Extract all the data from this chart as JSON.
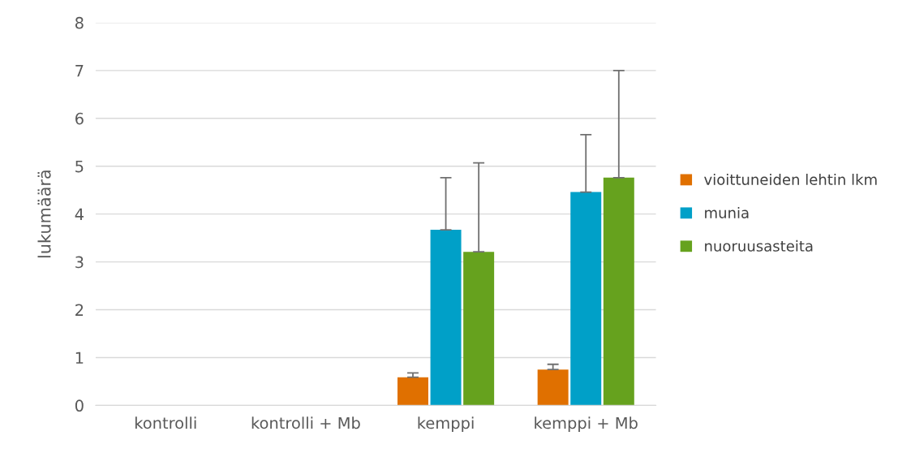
{
  "chart_data": {
    "type": "bar",
    "ylabel": "lukumäärä",
    "categories": [
      "kontrolli",
      "kontrolli + Mb",
      "kemppi",
      "kemppi + Mb"
    ],
    "series": [
      {
        "name": "vioittuneiden lehtin lkm",
        "color": "#e07000",
        "values": [
          0,
          0,
          0.59,
          0.75
        ],
        "errors": [
          null,
          null,
          [
            0.59,
            0.68
          ],
          [
            0.75,
            0.86
          ]
        ]
      },
      {
        "name": "munia",
        "color": "#00a0c8",
        "values": [
          0,
          0,
          3.67,
          4.46
        ],
        "errors": [
          null,
          null,
          [
            3.67,
            4.76
          ],
          [
            4.46,
            5.66
          ]
        ]
      },
      {
        "name": "nuoruusasteita",
        "color": "#66a21e",
        "values": [
          0,
          0,
          3.21,
          4.76
        ],
        "errors": [
          null,
          null,
          [
            3.21,
            5.07
          ],
          [
            4.76,
            7.0
          ]
        ]
      }
    ],
    "ylim": [
      0,
      8
    ],
    "yticks": [
      0,
      1,
      2,
      3,
      4,
      5,
      6,
      7,
      8
    ],
    "grid": "y",
    "legend": "right"
  }
}
